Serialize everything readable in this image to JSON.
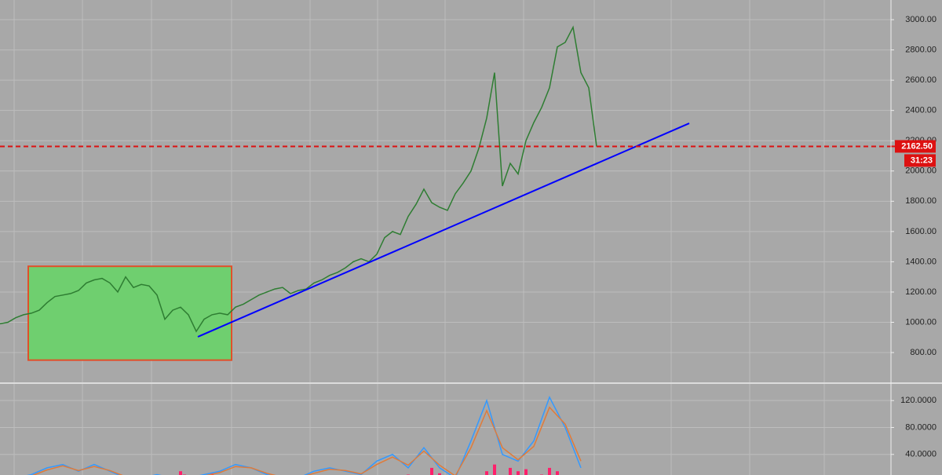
{
  "chart_data": [
    {
      "type": "line",
      "x": [
        0,
        1,
        2,
        3,
        4,
        5,
        6,
        7,
        8,
        9,
        10,
        11,
        12,
        13,
        14,
        15,
        16,
        17,
        18,
        19,
        20,
        21,
        22,
        23,
        24,
        25,
        26,
        27,
        28,
        29,
        30,
        31,
        32,
        33,
        34,
        35,
        36,
        37,
        38,
        39,
        40,
        41,
        42,
        43,
        44,
        45,
        46,
        47,
        48,
        49,
        50,
        51,
        52,
        53,
        54,
        55,
        56,
        57,
        58,
        59,
        60,
        61,
        62,
        63,
        64,
        65,
        66,
        67,
        68,
        69,
        70,
        71,
        72,
        73,
        74,
        75,
        76
      ],
      "values": [
        990,
        1000,
        1030,
        1050,
        1060,
        1080,
        1130,
        1170,
        1180,
        1190,
        1210,
        1260,
        1280,
        1290,
        1260,
        1200,
        1300,
        1230,
        1250,
        1240,
        1180,
        1020,
        1080,
        1100,
        1050,
        940,
        1020,
        1050,
        1060,
        1050,
        1100,
        1120,
        1150,
        1180,
        1200,
        1220,
        1230,
        1190,
        1210,
        1220,
        1260,
        1280,
        1310,
        1330,
        1360,
        1400,
        1420,
        1400,
        1450,
        1560,
        1600,
        1580,
        1700,
        1780,
        1880,
        1790,
        1760,
        1740,
        1850,
        1920,
        2000,
        2150,
        2350,
        2650,
        1900,
        2050,
        1980,
        2200,
        2320,
        2420,
        2550,
        2820,
        2850,
        2950,
        2650,
        2550,
        2162.5
      ],
      "color": "#2e7d32",
      "xlim": [
        0,
        113.5
      ],
      "ylim": [
        603,
        3130
      ],
      "yticks": [
        {
          "value": 800,
          "label": "800.00"
        },
        {
          "value": 1000,
          "label": "1000.00"
        },
        {
          "value": 1200,
          "label": "1200.00"
        },
        {
          "value": 1400,
          "label": "1400.00"
        },
        {
          "value": 1600,
          "label": "1600.00"
        },
        {
          "value": 1800,
          "label": "1800.00"
        },
        {
          "value": 2000,
          "label": "2000.00"
        },
        {
          "value": 2200,
          "label": "2200.00"
        },
        {
          "value": 2400,
          "label": "2400.00"
        },
        {
          "value": 2600,
          "label": "2600.00"
        },
        {
          "value": 2800,
          "label": "2800.00"
        },
        {
          "value": 3000,
          "label": "3000.00"
        }
      ],
      "grid": true,
      "trendline": {
        "x": [
          25.2,
          87.8
        ],
        "values": [
          904,
          2315
        ],
        "color": "#0000ff"
      },
      "highlight_box": {
        "x": [
          3.6,
          29.5
        ],
        "values": [
          1370,
          750
        ],
        "color": "#6fcf6f",
        "border": "#e0502a"
      },
      "last_price": {
        "value": 2162.5,
        "label": "2162.50",
        "color": "#dd1111"
      },
      "countdown": "31:23"
    },
    {
      "type": "line",
      "x": [
        0,
        2,
        4,
        6,
        8,
        10,
        12,
        14,
        16,
        18,
        20,
        22,
        24,
        26,
        28,
        30,
        32,
        34,
        36,
        38,
        40,
        42,
        44,
        46,
        48,
        50,
        52,
        54,
        56,
        58,
        60,
        62,
        64,
        66,
        68,
        70,
        72,
        74
      ],
      "series": [
        {
          "color": "#3399ff",
          "values": [
            5,
            5,
            10,
            20,
            25,
            15,
            25,
            15,
            5,
            5,
            10,
            5,
            5,
            10,
            15,
            25,
            20,
            10,
            5,
            5,
            15,
            20,
            15,
            10,
            30,
            40,
            20,
            50,
            20,
            5,
            60,
            120,
            40,
            30,
            60,
            125,
            80,
            20
          ]
        },
        {
          "color": "#e07b39",
          "values": [
            4,
            4,
            8,
            17,
            23,
            16,
            22,
            16,
            7,
            5,
            8,
            6,
            5,
            8,
            13,
            22,
            20,
            12,
            6,
            5,
            12,
            18,
            16,
            11,
            25,
            36,
            24,
            45,
            24,
            8,
            50,
            105,
            50,
            32,
            52,
            110,
            85,
            30
          ]
        }
      ],
      "bars": {
        "x": [
          23,
          23.5,
          27,
          52,
          55,
          56,
          62,
          63,
          65,
          66,
          67,
          69,
          70,
          71
        ],
        "values": [
          15,
          10,
          12,
          10,
          20,
          12,
          15,
          25,
          20,
          15,
          18,
          10,
          20,
          15
        ],
        "color": "#ff1f6b"
      },
      "xlim": [
        0,
        113.5
      ],
      "ylim": [
        9.4,
        144.7
      ],
      "yticks": [
        {
          "value": 40,
          "label": "40.0000"
        },
        {
          "value": 80,
          "label": "80.0000"
        },
        {
          "value": 120,
          "label": "120.0000"
        }
      ],
      "grid": true
    }
  ]
}
